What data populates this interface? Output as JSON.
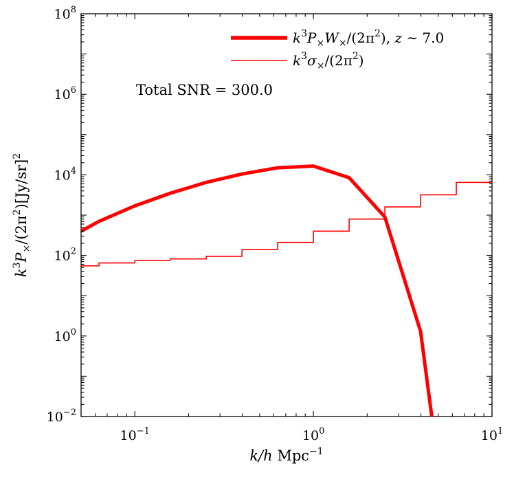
{
  "chart_data": {
    "type": "line",
    "xscale": "log",
    "yscale": "log",
    "xlim": [
      0.05,
      10
    ],
    "ylim": [
      0.01,
      100000000
    ],
    "xlabel": "k/h Mpc⁻¹",
    "ylabel": "k³P×/(2π²)[Jy/sr]²",
    "x_ticks": [
      {
        "value": 0.1,
        "base": "10",
        "exp": "−1"
      },
      {
        "value": 1,
        "base": "10",
        "exp": "0"
      },
      {
        "value": 10,
        "base": "10",
        "exp": "1"
      }
    ],
    "y_ticks": [
      {
        "value": 0.01,
        "base": "10",
        "exp": "−2"
      },
      {
        "value": 1,
        "base": "10",
        "exp": "0"
      },
      {
        "value": 100,
        "base": "10",
        "exp": "2"
      },
      {
        "value": 10000,
        "base": "10",
        "exp": "4"
      },
      {
        "value": 1000000,
        "base": "10",
        "exp": "6"
      },
      {
        "value": 100000000,
        "base": "10",
        "exp": "8"
      }
    ],
    "annotation": "Total SNR = 300.0",
    "legend_position": "top-right",
    "series": [
      {
        "name": "k³P×W×/(2π²), z ∼ 7.0",
        "style": "thick-line",
        "color": "#ff0000",
        "x": [
          0.05,
          0.063,
          0.1,
          0.158,
          0.251,
          0.398,
          0.631,
          1.0,
          1.585,
          2.512,
          3.981,
          4.6
        ],
        "y": [
          400,
          700,
          1700,
          3500,
          6500,
          10500,
          15000,
          16500,
          8500,
          900,
          1.3,
          0.01
        ]
      },
      {
        "name": "k³σ×/(2π²)",
        "style": "step",
        "color": "#ff0000",
        "x": [
          0.05,
          0.063,
          0.1,
          0.158,
          0.251,
          0.398,
          0.631,
          1.0,
          1.585,
          2.512,
          3.981,
          6.31,
          10
        ],
        "y": [
          55,
          65,
          75,
          82,
          95,
          140,
          210,
          400,
          800,
          1600,
          3200,
          6500,
          6500
        ]
      }
    ]
  }
}
